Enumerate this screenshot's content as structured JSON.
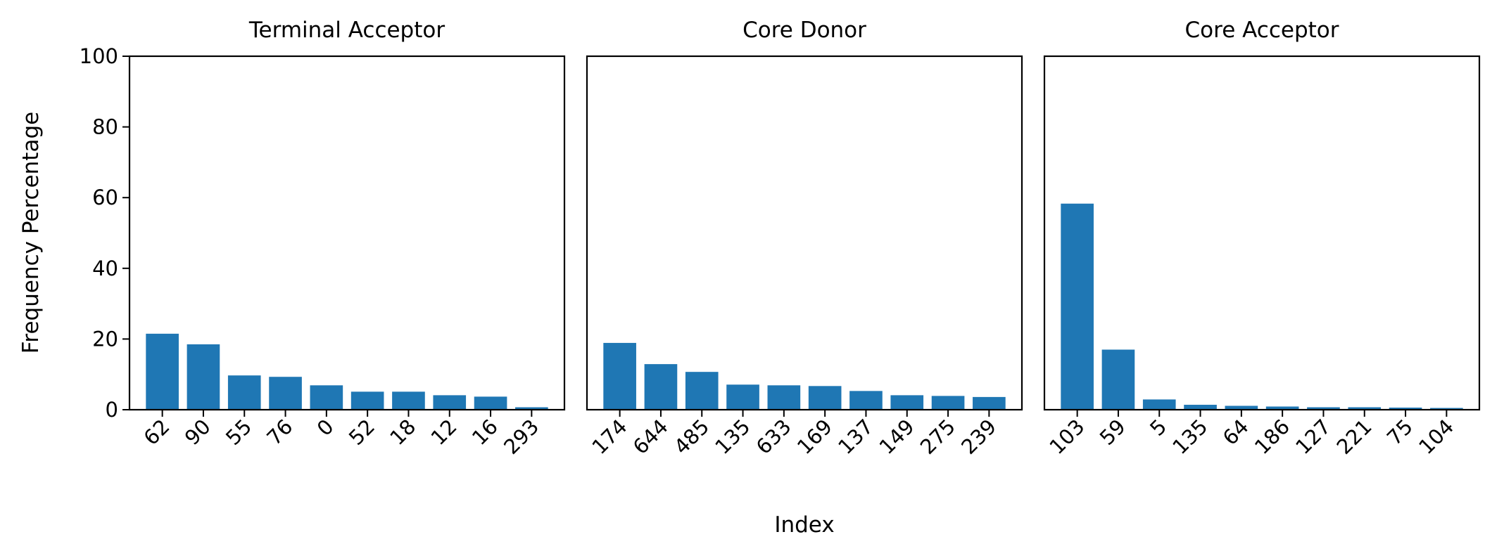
{
  "chart_data": {
    "type": "bar",
    "ylabel": "Frequency Percentage",
    "xlabel": "Index",
    "ylim": [
      0,
      100
    ],
    "yticks": [
      0,
      20,
      40,
      60,
      80,
      100
    ],
    "bar_color": "#1f77b4",
    "panels": [
      {
        "title": "Terminal Acceptor",
        "categories": [
          "62",
          "90",
          "55",
          "76",
          "0",
          "52",
          "18",
          "12",
          "16",
          "293"
        ],
        "values": [
          21.5,
          18.5,
          9.7,
          9.3,
          6.9,
          5.1,
          5.1,
          4.1,
          3.7,
          0.7
        ]
      },
      {
        "title": "Core Donor",
        "categories": [
          "174",
          "644",
          "485",
          "135",
          "633",
          "169",
          "137",
          "149",
          "275",
          "239"
        ],
        "values": [
          18.9,
          12.9,
          10.7,
          7.1,
          6.9,
          6.7,
          5.3,
          4.1,
          3.9,
          3.6
        ]
      },
      {
        "title": "Core Acceptor",
        "categories": [
          "103",
          "59",
          "5",
          "135",
          "64",
          "186",
          "127",
          "221",
          "75",
          "104"
        ],
        "values": [
          58.3,
          17.0,
          2.9,
          1.4,
          1.1,
          0.9,
          0.7,
          0.7,
          0.6,
          0.5
        ]
      }
    ]
  }
}
